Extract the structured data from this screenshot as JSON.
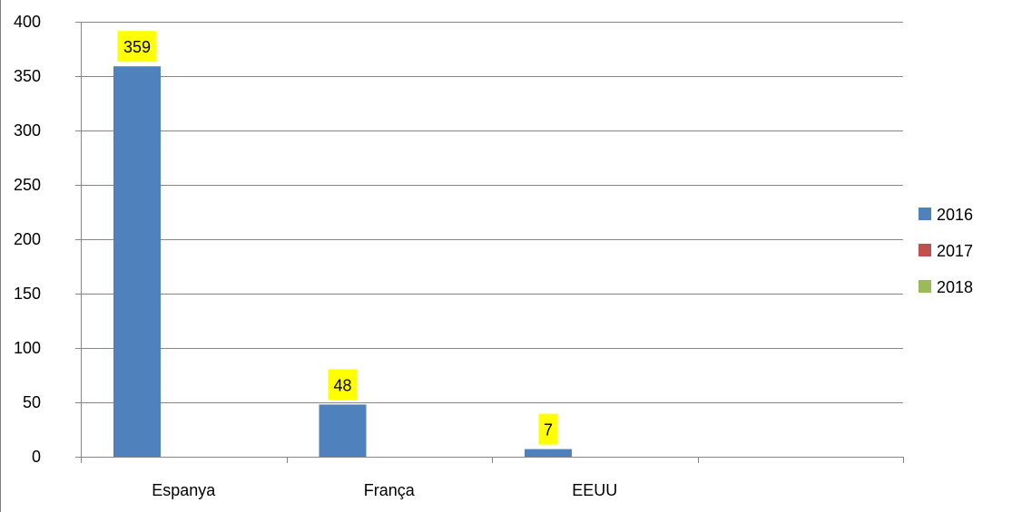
{
  "chart_data": {
    "type": "bar",
    "categories": [
      "Espanya",
      "França",
      "EEUU",
      ""
    ],
    "series": [
      {
        "name": "2016",
        "color": "#4f81bd",
        "values": [
          359,
          48,
          7,
          null
        ]
      },
      {
        "name": "2017",
        "color": "#c0504d",
        "values": [
          null,
          null,
          null,
          null
        ]
      },
      {
        "name": "2018",
        "color": "#9bbb59",
        "values": [
          null,
          null,
          null,
          null
        ]
      }
    ],
    "data_labels": {
      "background": "#ffff00",
      "values": [
        "359",
        "48",
        "7"
      ]
    },
    "ylim": [
      0,
      400
    ],
    "yticks": [
      "0",
      "50",
      "100",
      "150",
      "200",
      "250",
      "300",
      "350",
      "400"
    ],
    "grid": true,
    "legend": "right",
    "title": "",
    "xlabel": "",
    "ylabel": ""
  }
}
